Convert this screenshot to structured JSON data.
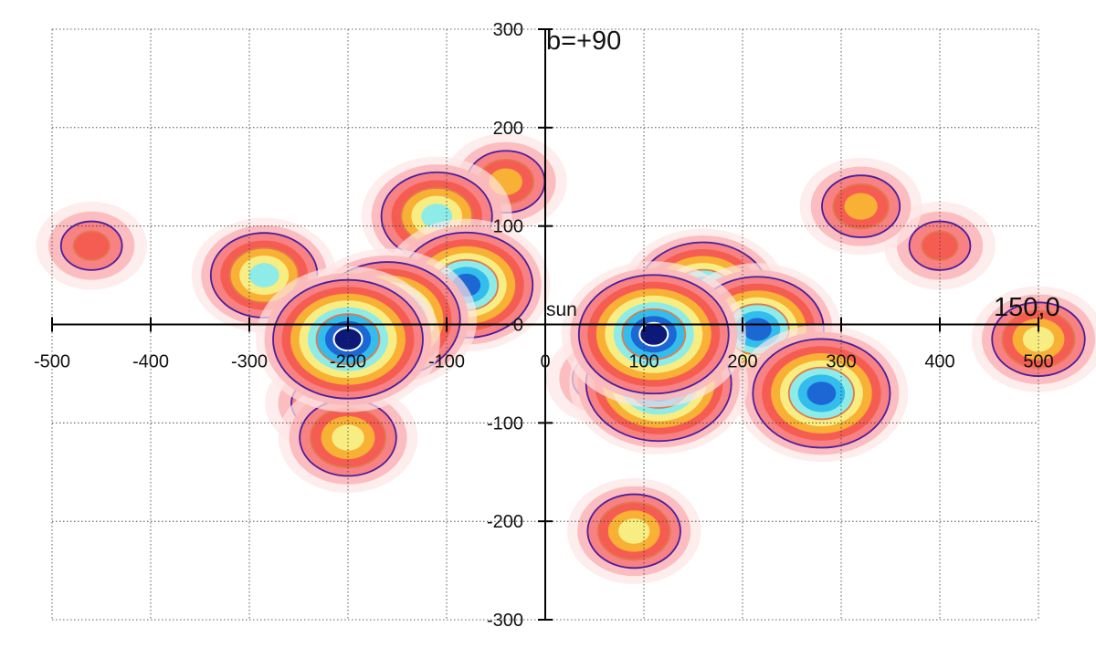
{
  "chart_data": {
    "type": "heatmap",
    "title": "",
    "xlabel": "",
    "ylabel": "",
    "xlim": [
      -500,
      500
    ],
    "ylim": [
      -300,
      300
    ],
    "x_ticks": [
      -500,
      -400,
      -300,
      -200,
      -100,
      0,
      100,
      200,
      300,
      400,
      500
    ],
    "y_ticks": [
      -300,
      -200,
      -100,
      0,
      100,
      200,
      300
    ],
    "x_tick_labels": [
      "-500",
      "-400",
      "-300",
      "-200",
      "-100",
      "0",
      "100",
      "200",
      "300",
      "400",
      "500"
    ],
    "y_tick_labels": [
      "-300",
      "-200",
      "-100",
      "0",
      "100",
      "200",
      "300"
    ],
    "grid": true,
    "grid_style": "dotted",
    "annotations": {
      "top_direction": "b=+90",
      "right_direction": "150,0",
      "origin": "sun"
    },
    "colors": {
      "level_1": "#fde6e6",
      "level_2": "#fbb9bb",
      "level_3": "#f77c7f",
      "level_4": "#f55a4e",
      "level_5": "#f7b733",
      "level_6": "#f6f28a",
      "level_7": "#83ebf0",
      "level_8": "#2bb8ee",
      "level_9": "#1a5fd1",
      "level_10": "#0b1270",
      "contour_low": "#4b1e9e",
      "contour_mid": "#e07a4f",
      "contour_high": "#ffffff"
    },
    "features": [
      {
        "x": -200,
        "y": -15,
        "peak": 1.0
      },
      {
        "x": -160,
        "y": 5,
        "peak": 0.95
      },
      {
        "x": -110,
        "y": 110,
        "peak": 0.7
      },
      {
        "x": -80,
        "y": 40,
        "peak": 0.85
      },
      {
        "x": -285,
        "y": 50,
        "peak": 0.65
      },
      {
        "x": -40,
        "y": 145,
        "peak": 0.45
      },
      {
        "x": -460,
        "y": 80,
        "peak": 0.35
      },
      {
        "x": -200,
        "y": -115,
        "peak": 0.6
      },
      {
        "x": -225,
        "y": -80,
        "peak": 0.4
      },
      {
        "x": 110,
        "y": -10,
        "peak": 1.0
      },
      {
        "x": 115,
        "y": -60,
        "peak": 0.95
      },
      {
        "x": 160,
        "y": 30,
        "peak": 0.85
      },
      {
        "x": 215,
        "y": -5,
        "peak": 0.85
      },
      {
        "x": 280,
        "y": -70,
        "peak": 0.9
      },
      {
        "x": 320,
        "y": 120,
        "peak": 0.45
      },
      {
        "x": 400,
        "y": 80,
        "peak": 0.35
      },
      {
        "x": 90,
        "y": -210,
        "peak": 0.55
      },
      {
        "x": 500,
        "y": -15,
        "peak": 0.55
      },
      {
        "x": 60,
        "y": -55,
        "peak": 0.4
      }
    ]
  }
}
